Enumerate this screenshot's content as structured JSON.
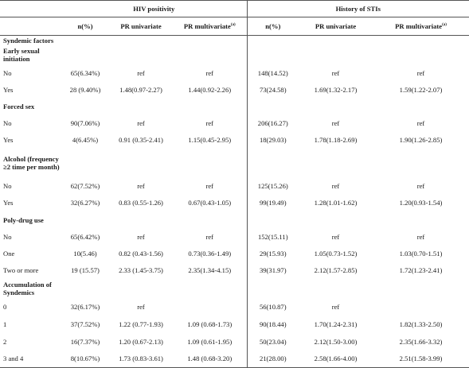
{
  "header": {
    "group_hiv": "HIV positivity",
    "group_sti": "History of STIs",
    "col_n": "n(%)",
    "col_pr_uni": "PR univariate",
    "col_pr_multi": "PR multivariate",
    "col_pr_multi_sup": "(a)"
  },
  "sections": {
    "syndemic": "Syndemic factors",
    "early": "Early sexual initiation",
    "forced": "Forced sex",
    "alcohol": "Alcohol (frequency ≥2 time per month)",
    "poly": "Poly-drug use",
    "accum": "Accumulation of Syndemics"
  },
  "rows": {
    "early_no": [
      "No",
      "65(6.34%)",
      "ref",
      "ref",
      "148(14.52)",
      "ref",
      "ref"
    ],
    "early_yes": [
      "Yes",
      "28 (9.40%)",
      "1.48(0.97-2.27)",
      "1.44(0.92-2.26)",
      "73(24.58)",
      "1.69(1.32-2.17)",
      "1.59(1.22-2.07)"
    ],
    "forced_no": [
      "No",
      "90(7.06%)",
      "ref",
      "ref",
      "206(16.27)",
      "ref",
      "ref"
    ],
    "forced_yes": [
      "Yes",
      "4(6.45%)",
      "0.91 (0.35-2.41)",
      "1.15(0.45-2.95)",
      "18(29.03)",
      "1.78(1.18-2.69)",
      "1.90(1.26-2.85)"
    ],
    "alc_no": [
      "No",
      "62(7.52%)",
      "ref",
      "ref",
      "125(15.26)",
      "ref",
      "ref"
    ],
    "alc_yes": [
      "Yes",
      "32(6.27%)",
      "0.83 (0.55-1.26)",
      "0.67(0.43-1.05)",
      "99(19.49)",
      "1.28(1.01-1.62)",
      "1.20(0.93-1.54)"
    ],
    "poly_no": [
      "No",
      "65(6.42%)",
      "ref",
      "ref",
      "152(15.11)",
      "ref",
      "ref"
    ],
    "poly_one": [
      "One",
      "10(5.46)",
      "0.82 (0.43-1.56)",
      "0.73(0.36-1.49)",
      "29(15.93)",
      "1.05(0.73-1.52)",
      "1.03(0.70-1.51)"
    ],
    "poly_two": [
      "Two or more",
      "19 (15.57)",
      "2.33 (1.45-3.75)",
      "2.35(1.34-4.15)",
      "39(31.97)",
      "2.12(1.57-2.85)",
      "1.72(1.23-2.41)"
    ],
    "acc_0": [
      "0",
      "32(6.17%)",
      "ref",
      "",
      "56(10.87)",
      "ref",
      ""
    ],
    "acc_1": [
      "1",
      "37(7.52%)",
      "1.22 (0.77-1.93)",
      "1.09 (0.68-1.73)",
      "90(18.44)",
      "1.70(1.24-2.31)",
      "1.82(1.33-2.50)"
    ],
    "acc_2": [
      "2",
      "16(7.37%)",
      "1.20 (0.67-2.13)",
      "1.09 (0.61-1.95)",
      "50(23.04)",
      "2.12(1.50-3.00)",
      "2.35(1.66-3.32)"
    ],
    "acc_34": [
      "3 and 4",
      "8(10.67%)",
      "1.73 (0.83-3.61)",
      "1.48 (0.68-3.20)",
      "21(28.00)",
      "2.58(1.66-4.00)",
      "2.51(1.58-3.99)"
    ]
  }
}
